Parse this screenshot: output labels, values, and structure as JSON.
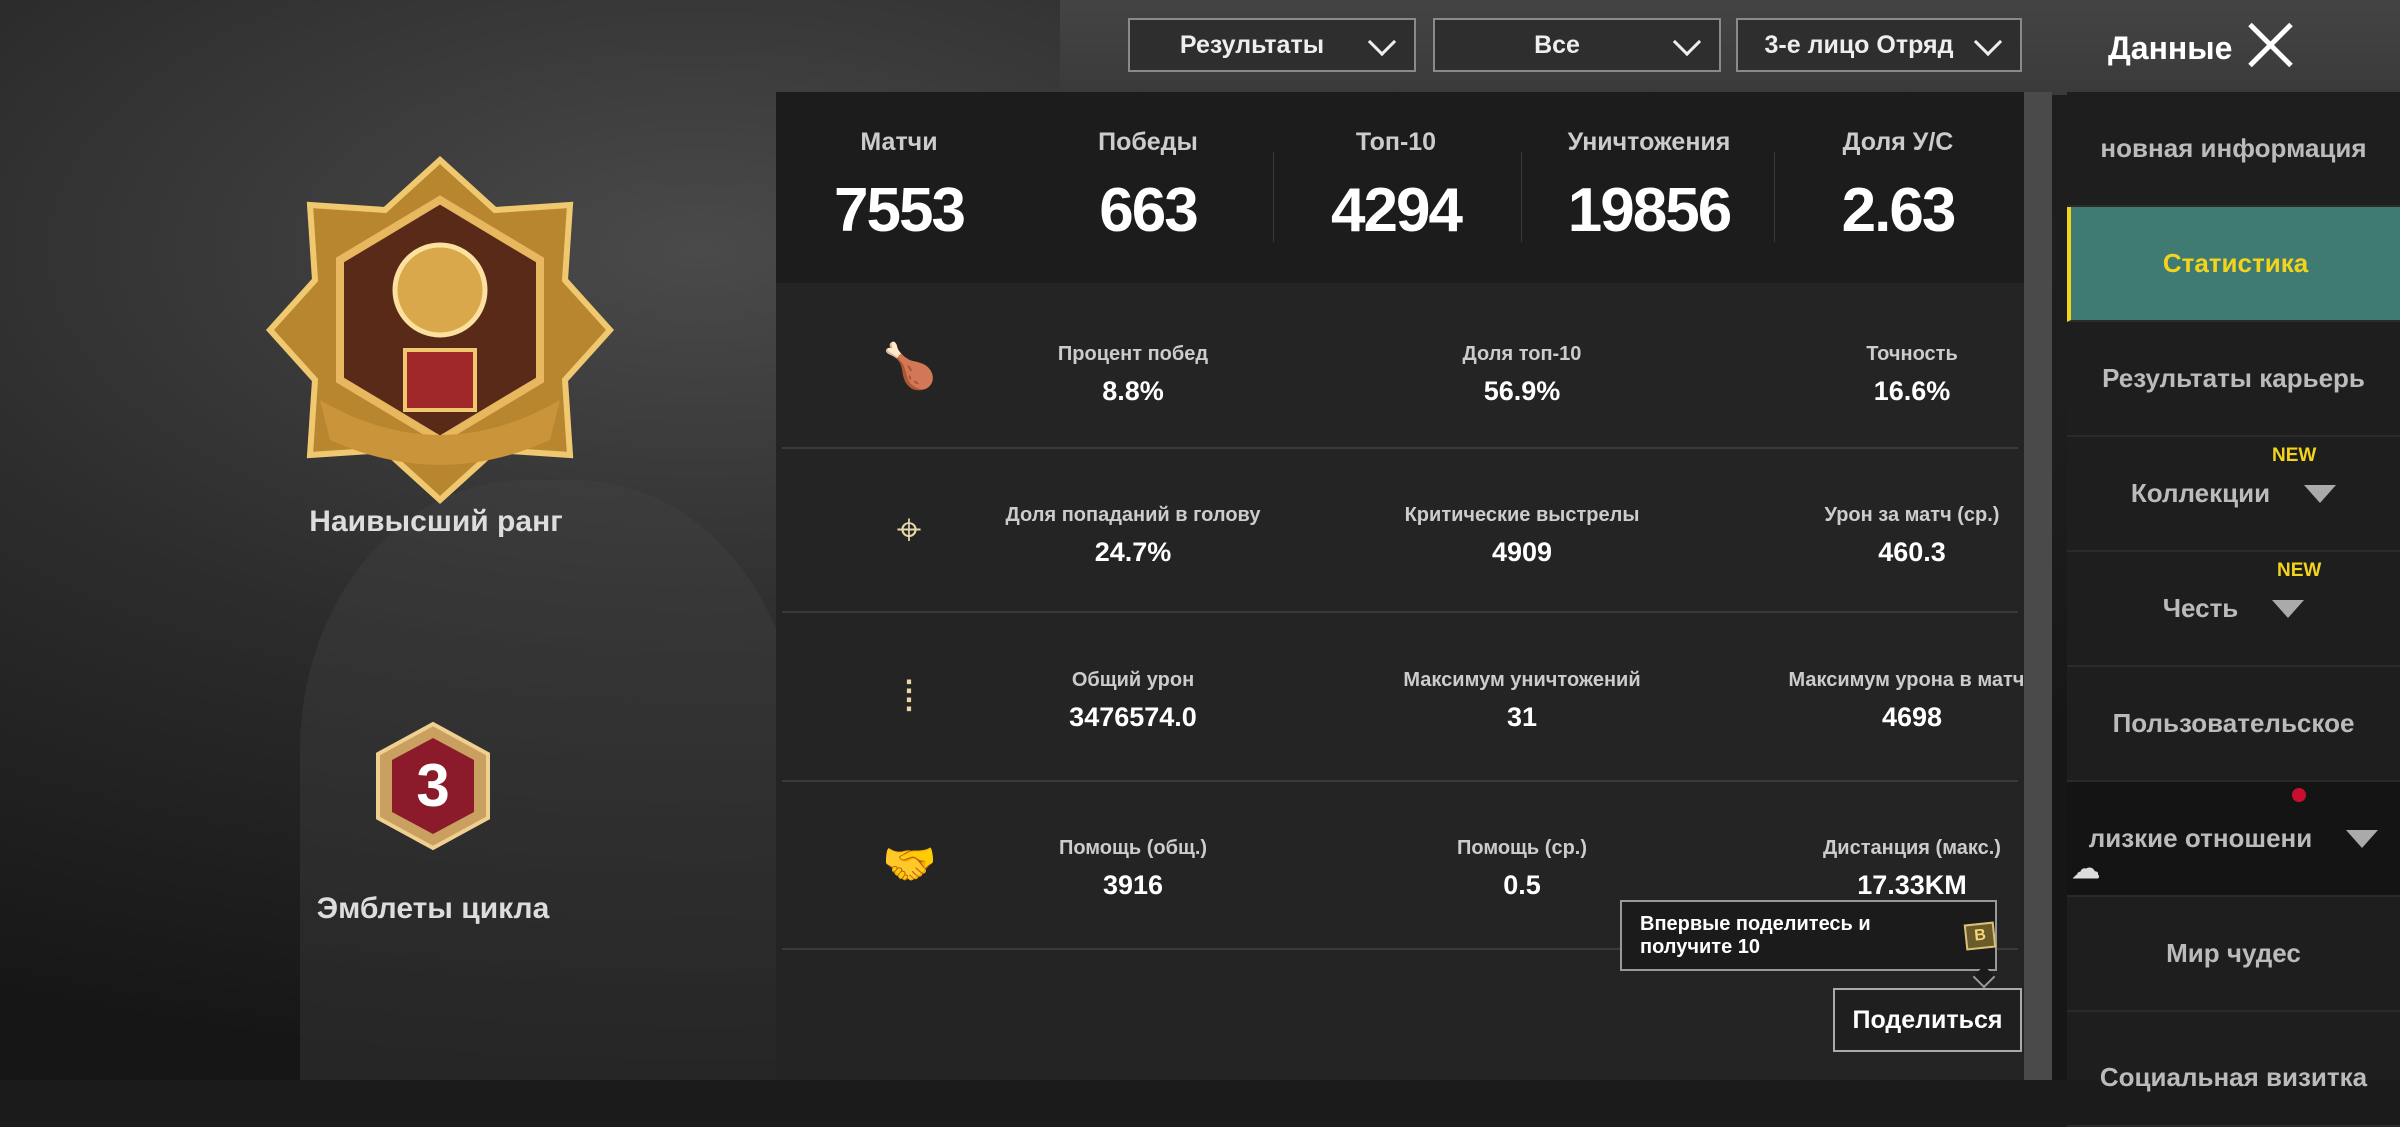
{
  "filters": [
    {
      "label": "Результаты"
    },
    {
      "label": "Все"
    },
    {
      "label": "3-е лицо Отряд"
    }
  ],
  "header": {
    "title": "Данные",
    "close_icon": "close-icon"
  },
  "summary": [
    {
      "label": "Матчи",
      "value": "7553"
    },
    {
      "label": "Победы",
      "value": "663"
    },
    {
      "label": "Топ-10",
      "value": "4294"
    },
    {
      "label": "Уничтожения",
      "value": "19856"
    },
    {
      "label": "Доля У/С",
      "value": "2.63"
    }
  ],
  "rows": [
    {
      "icon": "chicken-icon",
      "cells": [
        {
          "label": "Процент побед",
          "value": "8.8%"
        },
        {
          "label": "Доля топ-10",
          "value": "56.9%"
        },
        {
          "label": "Точность",
          "value": "16.6%"
        }
      ]
    },
    {
      "icon": "crosshair-icon",
      "cells": [
        {
          "label": "Доля попаданий в голову",
          "value": "24.7%"
        },
        {
          "label": "Критические выстрелы",
          "value": "4909"
        },
        {
          "label": "Урон за матч (ср.)",
          "value": "460.3"
        }
      ]
    },
    {
      "icon": "bullets-icon",
      "cells": [
        {
          "label": "Общий урон",
          "value": "3476574.0"
        },
        {
          "label": "Максимум уничтожений",
          "value": "31"
        },
        {
          "label": "Максимум урона в матче",
          "value": "4698"
        }
      ]
    },
    {
      "icon": "handshake-icon",
      "cells": [
        {
          "label": "Помощь (общ.)",
          "value": "3916"
        },
        {
          "label": "Помощь (ср.)",
          "value": "0.5"
        },
        {
          "label": "Дистанция (макс.)",
          "value": "17.33KM"
        }
      ]
    }
  ],
  "left": {
    "rank_label": "Наивысший ранг",
    "emblem_label": "Эмблеты цикла",
    "emblem_number": "3"
  },
  "sidebar": {
    "items": [
      {
        "label": "новная информация"
      },
      {
        "label": "Статистика",
        "selected": true
      },
      {
        "label": "Результаты карьерь"
      },
      {
        "label": "Коллекции",
        "badge": "NEW"
      },
      {
        "label": "Честь",
        "badge": "NEW"
      },
      {
        "label": "Пользовательское"
      },
      {
        "label": "лизкие отношени"
      },
      {
        "label": "Мир чудес"
      },
      {
        "label": "Социальная визитка"
      }
    ]
  },
  "share": {
    "tooltip": "Впервые поделитесь и получите 10",
    "coin": "B",
    "button": "Поделиться"
  },
  "colors": {
    "accent": "#f3d31c",
    "selected_bg": "#3f7b73",
    "medal_gold": "#c9943a",
    "emblem_red": "#8b1a2a"
  }
}
